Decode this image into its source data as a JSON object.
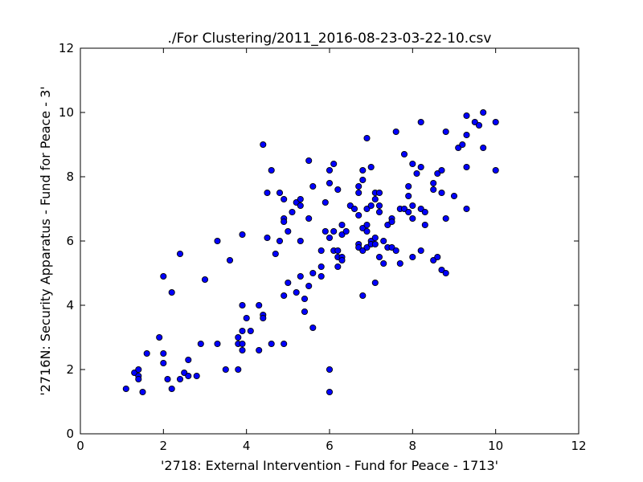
{
  "chart_data": {
    "type": "scatter",
    "title": "./For Clustering/2011_2016-08-23-03-22-10.csv",
    "xlabel": "'2718: External Intervention - Fund for Peace - 1713'",
    "ylabel": "'2716N: Security Apparatus - Fund for Peace - 3'",
    "xlim": [
      0,
      12
    ],
    "ylim": [
      0,
      12
    ],
    "xticks": [
      0,
      2,
      4,
      6,
      8,
      10,
      12
    ],
    "yticks": [
      0,
      2,
      4,
      6,
      8,
      10,
      12
    ],
    "grid": false,
    "marker_color": "#0000ff",
    "marker_edge_color": "#000000",
    "points": [
      [
        1.1,
        1.4
      ],
      [
        1.3,
        1.9
      ],
      [
        1.4,
        2.0
      ],
      [
        1.4,
        1.8
      ],
      [
        1.4,
        1.7
      ],
      [
        1.5,
        1.3
      ],
      [
        1.6,
        2.5
      ],
      [
        1.9,
        3.0
      ],
      [
        2.0,
        4.9
      ],
      [
        2.0,
        2.5
      ],
      [
        2.0,
        2.2
      ],
      [
        2.1,
        1.7
      ],
      [
        2.2,
        4.4
      ],
      [
        2.2,
        1.4
      ],
      [
        2.4,
        5.6
      ],
      [
        2.4,
        1.7
      ],
      [
        2.5,
        1.9
      ],
      [
        2.6,
        2.3
      ],
      [
        2.6,
        1.8
      ],
      [
        2.8,
        1.8
      ],
      [
        2.9,
        2.8
      ],
      [
        3.0,
        4.8
      ],
      [
        3.3,
        6.0
      ],
      [
        3.3,
        2.8
      ],
      [
        3.5,
        2.0
      ],
      [
        3.6,
        5.4
      ],
      [
        3.8,
        3.0
      ],
      [
        3.8,
        2.8
      ],
      [
        3.8,
        2.0
      ],
      [
        3.9,
        6.2
      ],
      [
        3.9,
        4.0
      ],
      [
        3.9,
        3.2
      ],
      [
        3.9,
        2.8
      ],
      [
        3.9,
        2.6
      ],
      [
        4.0,
        3.6
      ],
      [
        4.1,
        3.2
      ],
      [
        4.3,
        4.0
      ],
      [
        4.3,
        2.6
      ],
      [
        4.4,
        9.0
      ],
      [
        4.4,
        3.7
      ],
      [
        4.4,
        3.6
      ],
      [
        4.5,
        7.5
      ],
      [
        4.5,
        6.1
      ],
      [
        4.6,
        8.2
      ],
      [
        4.6,
        2.8
      ],
      [
        4.7,
        5.6
      ],
      [
        4.8,
        7.5
      ],
      [
        4.8,
        6.0
      ],
      [
        4.9,
        7.3
      ],
      [
        4.9,
        6.7
      ],
      [
        4.9,
        6.6
      ],
      [
        4.9,
        4.3
      ],
      [
        4.9,
        2.8
      ],
      [
        5.0,
        6.3
      ],
      [
        5.0,
        4.7
      ],
      [
        5.1,
        6.9
      ],
      [
        5.2,
        7.2
      ],
      [
        5.2,
        4.4
      ],
      [
        5.3,
        7.3
      ],
      [
        5.3,
        7.1
      ],
      [
        5.3,
        6.0
      ],
      [
        5.3,
        4.9
      ],
      [
        5.4,
        4.2
      ],
      [
        5.4,
        3.8
      ],
      [
        5.5,
        8.5
      ],
      [
        5.5,
        6.7
      ],
      [
        5.5,
        4.6
      ],
      [
        5.6,
        7.7
      ],
      [
        5.6,
        5.0
      ],
      [
        5.6,
        3.3
      ],
      [
        5.8,
        5.7
      ],
      [
        5.8,
        5.2
      ],
      [
        5.8,
        4.9
      ],
      [
        5.9,
        7.2
      ],
      [
        5.9,
        6.3
      ],
      [
        6.0,
        8.2
      ],
      [
        6.0,
        7.8
      ],
      [
        6.0,
        6.1
      ],
      [
        6.0,
        2.0
      ],
      [
        6.0,
        1.3
      ],
      [
        6.1,
        8.4
      ],
      [
        6.1,
        6.3
      ],
      [
        6.1,
        5.7
      ],
      [
        6.2,
        7.6
      ],
      [
        6.2,
        5.7
      ],
      [
        6.2,
        5.5
      ],
      [
        6.2,
        5.2
      ],
      [
        6.3,
        6.5
      ],
      [
        6.3,
        6.2
      ],
      [
        6.3,
        5.5
      ],
      [
        6.3,
        5.4
      ],
      [
        6.4,
        6.3
      ],
      [
        6.5,
        7.1
      ],
      [
        6.6,
        7.0
      ],
      [
        6.7,
        7.7
      ],
      [
        6.7,
        7.5
      ],
      [
        6.7,
        6.8
      ],
      [
        6.7,
        5.9
      ],
      [
        6.7,
        5.8
      ],
      [
        6.8,
        8.2
      ],
      [
        6.8,
        7.9
      ],
      [
        6.8,
        6.4
      ],
      [
        6.8,
        5.7
      ],
      [
        6.8,
        4.3
      ],
      [
        6.9,
        9.2
      ],
      [
        6.9,
        7.0
      ],
      [
        6.9,
        6.5
      ],
      [
        6.9,
        6.3
      ],
      [
        6.9,
        5.8
      ],
      [
        7.0,
        8.3
      ],
      [
        7.0,
        7.1
      ],
      [
        7.0,
        6.0
      ],
      [
        7.0,
        5.9
      ],
      [
        7.1,
        7.5
      ],
      [
        7.1,
        7.3
      ],
      [
        7.1,
        6.1
      ],
      [
        7.1,
        5.9
      ],
      [
        7.1,
        4.7
      ],
      [
        7.2,
        7.5
      ],
      [
        7.2,
        7.1
      ],
      [
        7.2,
        6.9
      ],
      [
        7.2,
        5.5
      ],
      [
        7.3,
        6.0
      ],
      [
        7.3,
        5.3
      ],
      [
        7.4,
        6.5
      ],
      [
        7.4,
        5.8
      ],
      [
        7.5,
        6.7
      ],
      [
        7.5,
        6.6
      ],
      [
        7.5,
        5.8
      ],
      [
        7.6,
        9.4
      ],
      [
        7.6,
        5.7
      ],
      [
        7.7,
        7.0
      ],
      [
        7.7,
        5.3
      ],
      [
        7.8,
        8.7
      ],
      [
        7.8,
        7.0
      ],
      [
        7.9,
        7.7
      ],
      [
        7.9,
        7.4
      ],
      [
        7.9,
        6.9
      ],
      [
        8.0,
        8.4
      ],
      [
        8.0,
        7.1
      ],
      [
        8.0,
        6.7
      ],
      [
        8.0,
        5.5
      ],
      [
        8.1,
        8.1
      ],
      [
        8.2,
        9.7
      ],
      [
        8.2,
        8.3
      ],
      [
        8.2,
        7.0
      ],
      [
        8.2,
        5.7
      ],
      [
        8.3,
        6.9
      ],
      [
        8.3,
        6.5
      ],
      [
        8.5,
        7.8
      ],
      [
        8.5,
        7.6
      ],
      [
        8.5,
        5.4
      ],
      [
        8.6,
        8.1
      ],
      [
        8.6,
        5.5
      ],
      [
        8.7,
        8.2
      ],
      [
        8.7,
        7.5
      ],
      [
        8.7,
        5.1
      ],
      [
        8.8,
        9.4
      ],
      [
        8.8,
        6.7
      ],
      [
        8.8,
        5.0
      ],
      [
        9.0,
        7.4
      ],
      [
        9.1,
        8.9
      ],
      [
        9.2,
        9.0
      ],
      [
        9.3,
        9.9
      ],
      [
        9.3,
        9.3
      ],
      [
        9.3,
        8.3
      ],
      [
        9.3,
        7.0
      ],
      [
        9.5,
        9.7
      ],
      [
        9.6,
        9.6
      ],
      [
        9.7,
        10.0
      ],
      [
        9.7,
        8.9
      ],
      [
        10.0,
        9.7
      ],
      [
        10.0,
        8.2
      ]
    ]
  }
}
